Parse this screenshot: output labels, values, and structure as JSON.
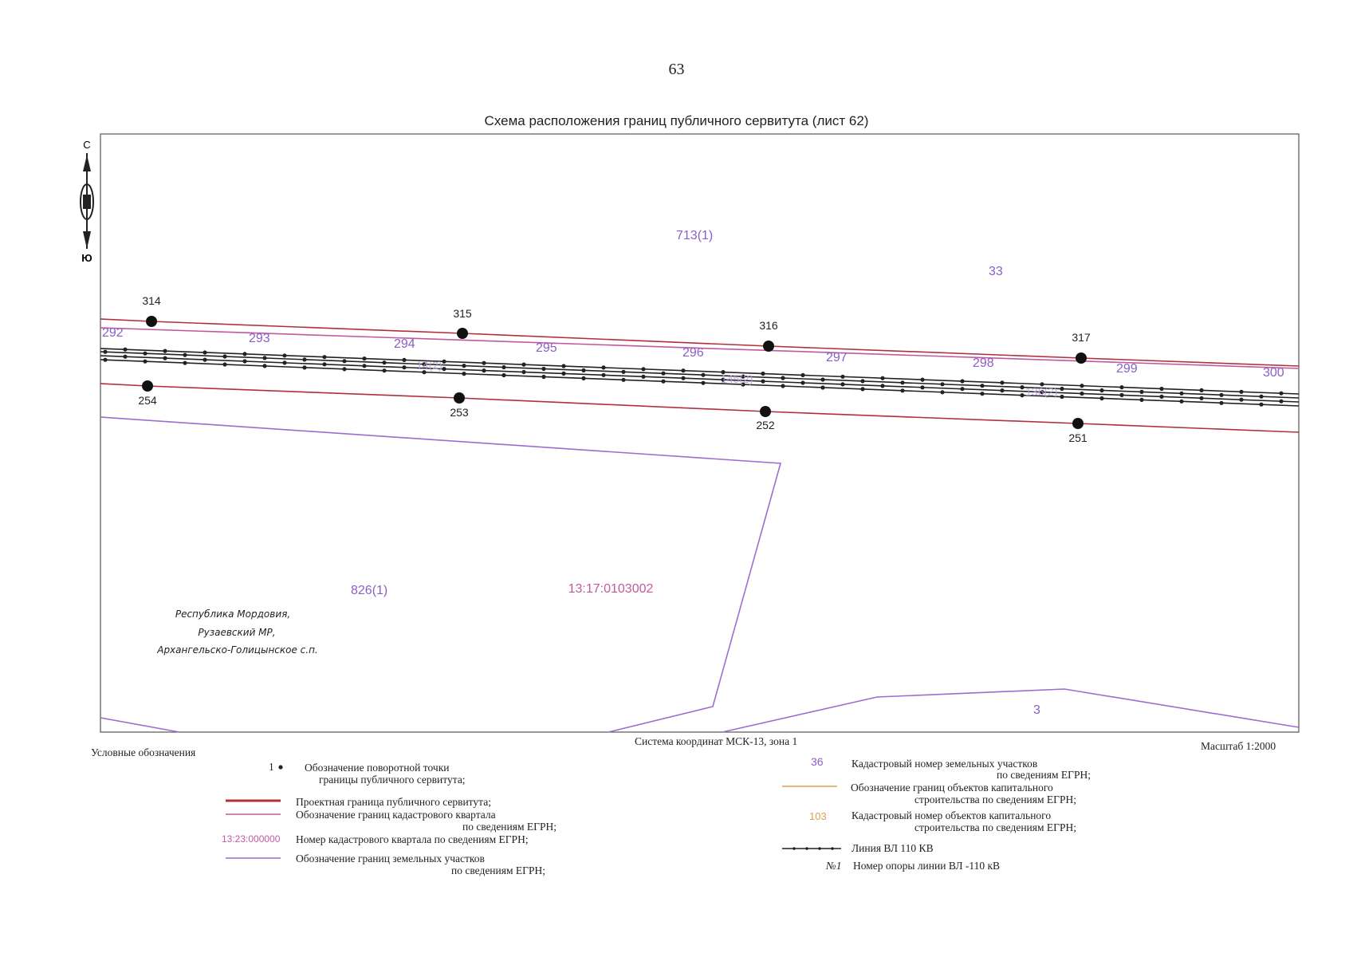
{
  "page_number": "63",
  "title": "Схема расположения границ публичного сервитута (лист 62)",
  "compass": {
    "north": "С",
    "south": "Ю"
  },
  "region_label": [
    "Республика Мордовия,",
    "Рузаевский МР,",
    "Архангельско-Голицынское с.п."
  ],
  "boundary_points": {
    "north_side": [
      "314",
      "315",
      "316",
      "317"
    ],
    "south_side": [
      "254",
      "253",
      "252",
      "251"
    ]
  },
  "parcel_numbers": [
    "292",
    "293",
    "294",
    "295",
    "296",
    "297",
    "298",
    "299",
    "300",
    "713(1)",
    "33",
    "826(1)",
    "3"
  ],
  "overlap_labels": [
    "145(2)",
    "14(2)",
    "136(2)"
  ],
  "quarter_number": "13:17:0103002",
  "coordinate_system": "Система координат МСК-13, зона 1",
  "scale": "Масштаб 1:2000",
  "legend": {
    "heading": "Условные обозначения",
    "point_symbol": "1",
    "point_text": [
      "Обозначение поворотной точки",
      "границы публичного сервитута;"
    ],
    "servitude_border": "Проектная граница публичного сервитута;",
    "quarter_border": [
      "Обозначение границ кадастрового квартала",
      "по сведениям ЕГРН;"
    ],
    "quarter_number_sample": "13:23:000000",
    "quarter_number_text": "Номер кадастрового квартала по сведениям ЕГРН;",
    "parcel_border": [
      "Обозначение границ земельных участков",
      "по сведениям ЕГРН;"
    ],
    "parcel_number_sample": "36",
    "parcel_number_text": [
      "Кадастровый номер земельных участков",
      "по сведениям ЕГРН;"
    ],
    "building_border": [
      "Обозначение границ объектов капитального",
      "строительства по сведениям ЕГРН;"
    ],
    "building_number_sample": "103",
    "building_number_text": [
      "Кадастровый номер объектов капитального",
      "строительства по сведениям ЕГРН;"
    ],
    "power_line": "Линия ВЛ 110 КВ",
    "pole_symbol": "№1",
    "pole_text": "Номер опоры линии ВЛ -110 кВ"
  },
  "colors": {
    "servitude": "#b0303e",
    "quarter": "#c05aa0",
    "parcel": "#9d6cd0",
    "parcel_text": "#8a5fc8",
    "building": "#d9a050",
    "power_line": "#222222"
  }
}
